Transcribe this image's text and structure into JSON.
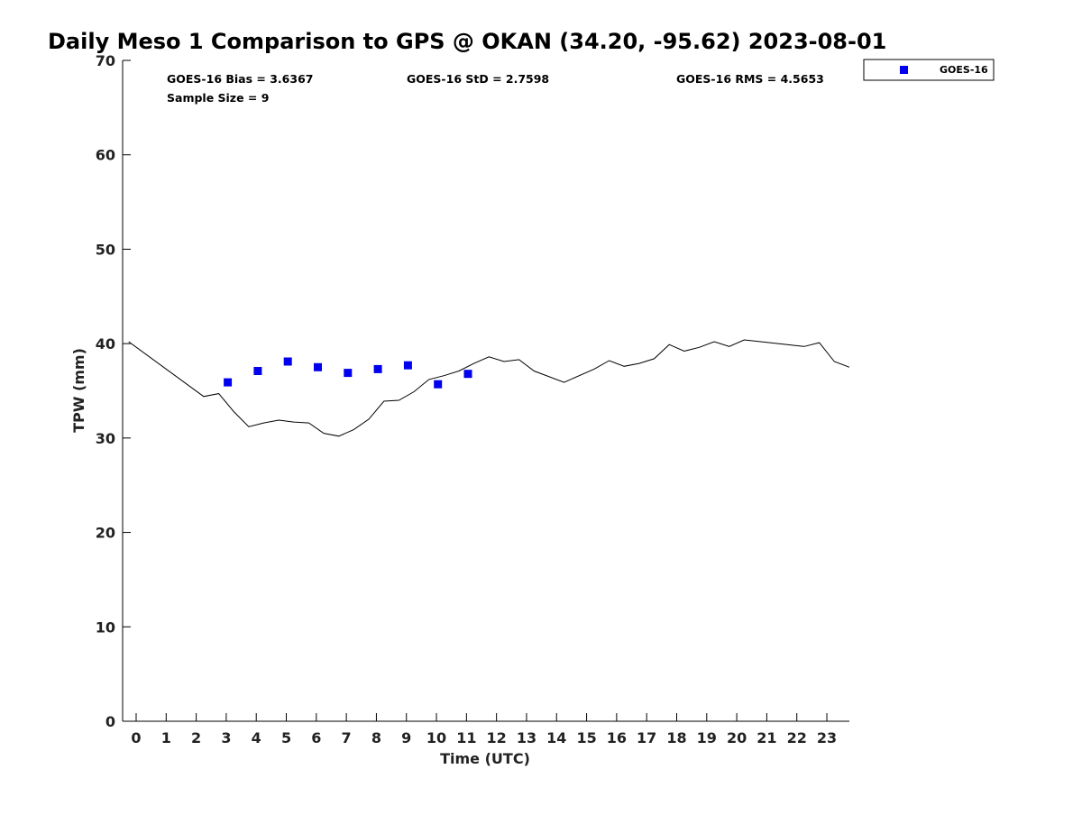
{
  "chart_data": {
    "type": "scatter",
    "title": "Daily Meso 1 Comparison to GPS @ OKAN (34.20, -95.62) 2023-08-01",
    "xlabel": "Time (UTC)",
    "ylabel": "TPW (mm)",
    "xlim": [
      -0.45,
      23.75
    ],
    "ylim": [
      0,
      70
    ],
    "x_ticks": [
      "0",
      "1",
      "2",
      "3",
      "4",
      "5",
      "6",
      "7",
      "8",
      "9",
      "10",
      "11",
      "12",
      "13",
      "14",
      "15",
      "16",
      "17",
      "18",
      "19",
      "20",
      "21",
      "22",
      "23"
    ],
    "y_ticks": [
      "0",
      "10",
      "20",
      "30",
      "40",
      "50",
      "60",
      "70"
    ],
    "stats": {
      "bias": "GOES-16 Bias = 3.6367",
      "std": "GOES-16 StD = 2.7598",
      "rms": "GOES-16 RMS = 4.5653",
      "sample_size": "Sample Size = 9"
    },
    "legend": {
      "position": "top-right",
      "label": "GOES-16"
    },
    "colors": {
      "goes_marker": "#0000ee",
      "gps_line": "#000000"
    },
    "series": [
      {
        "name": "GOES-16",
        "style": "square-marker",
        "points": [
          {
            "x": 3.05,
            "y": 35.9
          },
          {
            "x": 4.05,
            "y": 37.1
          },
          {
            "x": 5.05,
            "y": 38.1
          },
          {
            "x": 6.05,
            "y": 37.5
          },
          {
            "x": 7.05,
            "y": 36.9
          },
          {
            "x": 8.05,
            "y": 37.3
          },
          {
            "x": 9.05,
            "y": 37.7
          },
          {
            "x": 10.05,
            "y": 35.7
          },
          {
            "x": 11.05,
            "y": 36.8
          }
        ]
      },
      {
        "style": "line",
        "points": [
          {
            "x": -0.25,
            "y": 40.2
          },
          {
            "x": 2.25,
            "y": 34.4
          },
          {
            "x": 2.75,
            "y": 34.7
          },
          {
            "x": 3.25,
            "y": 32.8
          },
          {
            "x": 3.75,
            "y": 31.2
          },
          {
            "x": 4.25,
            "y": 31.6
          },
          {
            "x": 4.75,
            "y": 31.9
          },
          {
            "x": 5.25,
            "y": 31.7
          },
          {
            "x": 5.75,
            "y": 31.6
          },
          {
            "x": 6.25,
            "y": 30.5
          },
          {
            "x": 6.75,
            "y": 30.2
          },
          {
            "x": 7.25,
            "y": 30.9
          },
          {
            "x": 7.75,
            "y": 32.0
          },
          {
            "x": 8.25,
            "y": 33.9
          },
          {
            "x": 8.75,
            "y": 34.0
          },
          {
            "x": 9.25,
            "y": 34.9
          },
          {
            "x": 9.75,
            "y": 36.2
          },
          {
            "x": 10.25,
            "y": 36.6
          },
          {
            "x": 10.75,
            "y": 37.1
          },
          {
            "x": 11.25,
            "y": 37.9
          },
          {
            "x": 11.75,
            "y": 38.6
          },
          {
            "x": 12.25,
            "y": 38.1
          },
          {
            "x": 12.75,
            "y": 38.3
          },
          {
            "x": 13.25,
            "y": 37.1
          },
          {
            "x": 14.25,
            "y": 35.9
          },
          {
            "x": 15.25,
            "y": 37.3
          },
          {
            "x": 15.75,
            "y": 38.2
          },
          {
            "x": 16.25,
            "y": 37.6
          },
          {
            "x": 16.75,
            "y": 37.9
          },
          {
            "x": 17.25,
            "y": 38.4
          },
          {
            "x": 17.75,
            "y": 39.9
          },
          {
            "x": 18.25,
            "y": 39.2
          },
          {
            "x": 18.75,
            "y": 39.6
          },
          {
            "x": 19.25,
            "y": 40.2
          },
          {
            "x": 19.75,
            "y": 39.7
          },
          {
            "x": 20.25,
            "y": 40.4
          },
          {
            "x": 22.25,
            "y": 39.7
          },
          {
            "x": 22.75,
            "y": 40.1
          },
          {
            "x": 23.25,
            "y": 38.1
          },
          {
            "x": 23.75,
            "y": 37.5
          }
        ]
      }
    ]
  }
}
